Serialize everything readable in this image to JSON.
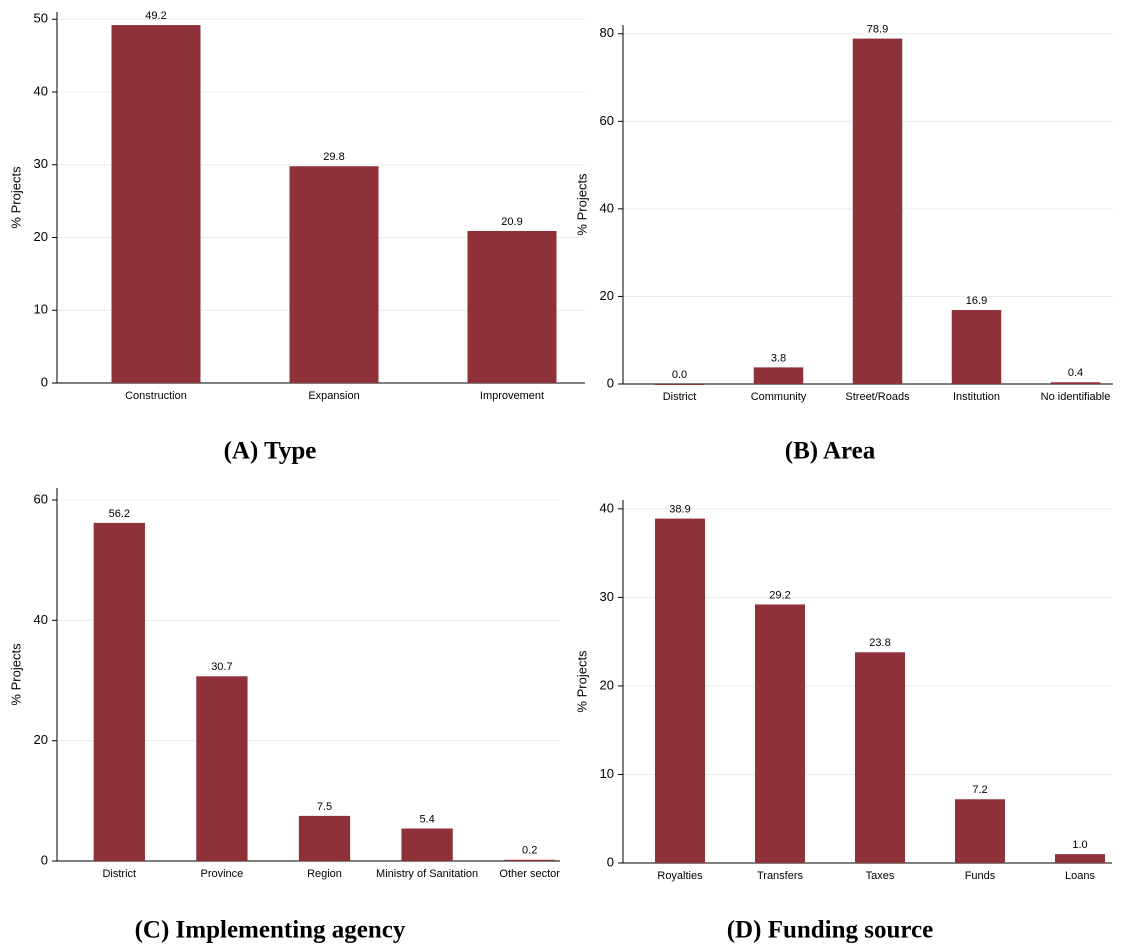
{
  "chart_data": [
    {
      "type": "bar",
      "title": "(A) Type",
      "y_label": "% Projects",
      "categories": [
        "Construction",
        "Expansion",
        "Improvement"
      ],
      "values": [
        49.2,
        29.8,
        20.9
      ],
      "color": "#8e3139",
      "ylim": [
        0,
        51
      ],
      "yticks": [
        0,
        10,
        20,
        30,
        40,
        50
      ],
      "grid": true
    },
    {
      "type": "bar",
      "title": "(B) Area",
      "y_label": "% Projects",
      "categories": [
        "District",
        "Community",
        "Street/Roads",
        "Institution",
        "No identifiable"
      ],
      "values": [
        0,
        3.8,
        78.9,
        16.9,
        0.4
      ],
      "value_labels": [
        "0.0",
        "3.8",
        "78.9",
        "16.9",
        "0.4"
      ],
      "color": "#8e3139",
      "ylim": [
        0,
        82
      ],
      "yticks": [
        0,
        20,
        40,
        60,
        80
      ],
      "grid": true
    },
    {
      "type": "bar",
      "title": "(C) Implementing agency",
      "y_label": "% Projects",
      "categories": [
        "District",
        "Province",
        "Region",
        "Ministry of Sanitation",
        "Other sector"
      ],
      "values": [
        56.2,
        30.7,
        7.5,
        5.4,
        0.2
      ],
      "color": "#8e3139",
      "ylim": [
        0,
        62
      ],
      "yticks": [
        0,
        20,
        40,
        60
      ],
      "grid": true
    },
    {
      "type": "bar",
      "title": "(D) Funding source",
      "y_label": "% Projects",
      "categories": [
        "Royalties",
        "Transfers",
        "Taxes",
        "Funds",
        "Loans"
      ],
      "values": [
        38.9,
        29.2,
        23.8,
        7.2,
        1
      ],
      "value_labels": [
        "38.9",
        "29.2",
        "23.8",
        "7.2",
        "1.0"
      ],
      "color": "#8e3139",
      "ylim": [
        0,
        41
      ],
      "yticks": [
        0,
        10,
        20,
        30,
        40
      ],
      "grid": true
    }
  ]
}
